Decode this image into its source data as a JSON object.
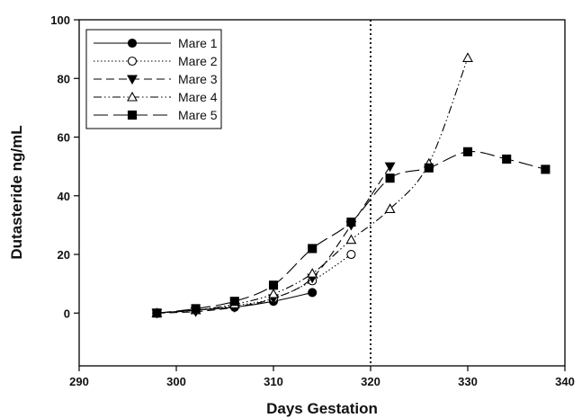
{
  "chart_data": {
    "type": "line",
    "xlabel": "Days Gestation",
    "ylabel": "Dutasteride ng/mL",
    "xlim": [
      290,
      340
    ],
    "ylim": [
      -18,
      100
    ],
    "x_ticks": [
      290,
      300,
      310,
      320,
      330,
      340
    ],
    "y_ticks": [
      0,
      20,
      40,
      60,
      80,
      100
    ],
    "grid": false,
    "legend_position": "top-left",
    "reference_line_x": 320,
    "series": [
      {
        "name": "Mare 1",
        "marker": "filled-circle",
        "dash": "solid",
        "x": [
          298,
          302,
          306,
          310,
          314
        ],
        "y": [
          0,
          1,
          2,
          4,
          7
        ]
      },
      {
        "name": "Mare 2",
        "marker": "open-circle",
        "dash": "dotted",
        "x": [
          298,
          302,
          306,
          310,
          314,
          318
        ],
        "y": [
          0,
          1,
          2.5,
          5,
          11,
          20
        ]
      },
      {
        "name": "Mare 3",
        "marker": "filled-triangle-down",
        "dash": "dashed",
        "x": [
          298,
          302,
          306,
          310,
          314,
          318,
          322
        ],
        "y": [
          0,
          0.5,
          2,
          5,
          12,
          30,
          50
        ]
      },
      {
        "name": "Mare 4",
        "marker": "open-triangle-up",
        "dash": "dash-dot-dot",
        "x": [
          298,
          302,
          306,
          310,
          314,
          318,
          322,
          326,
          330
        ],
        "y": [
          0,
          1,
          3,
          6.5,
          13.5,
          25,
          35.5,
          51,
          87
        ]
      },
      {
        "name": "Mare 5",
        "marker": "filled-square",
        "dash": "long-dash",
        "x": [
          298,
          302,
          306,
          310,
          314,
          318,
          322,
          326,
          330,
          334,
          338
        ],
        "y": [
          0,
          1.5,
          4,
          9.5,
          22,
          31,
          46,
          49.5,
          55,
          52.5,
          49
        ]
      }
    ]
  }
}
